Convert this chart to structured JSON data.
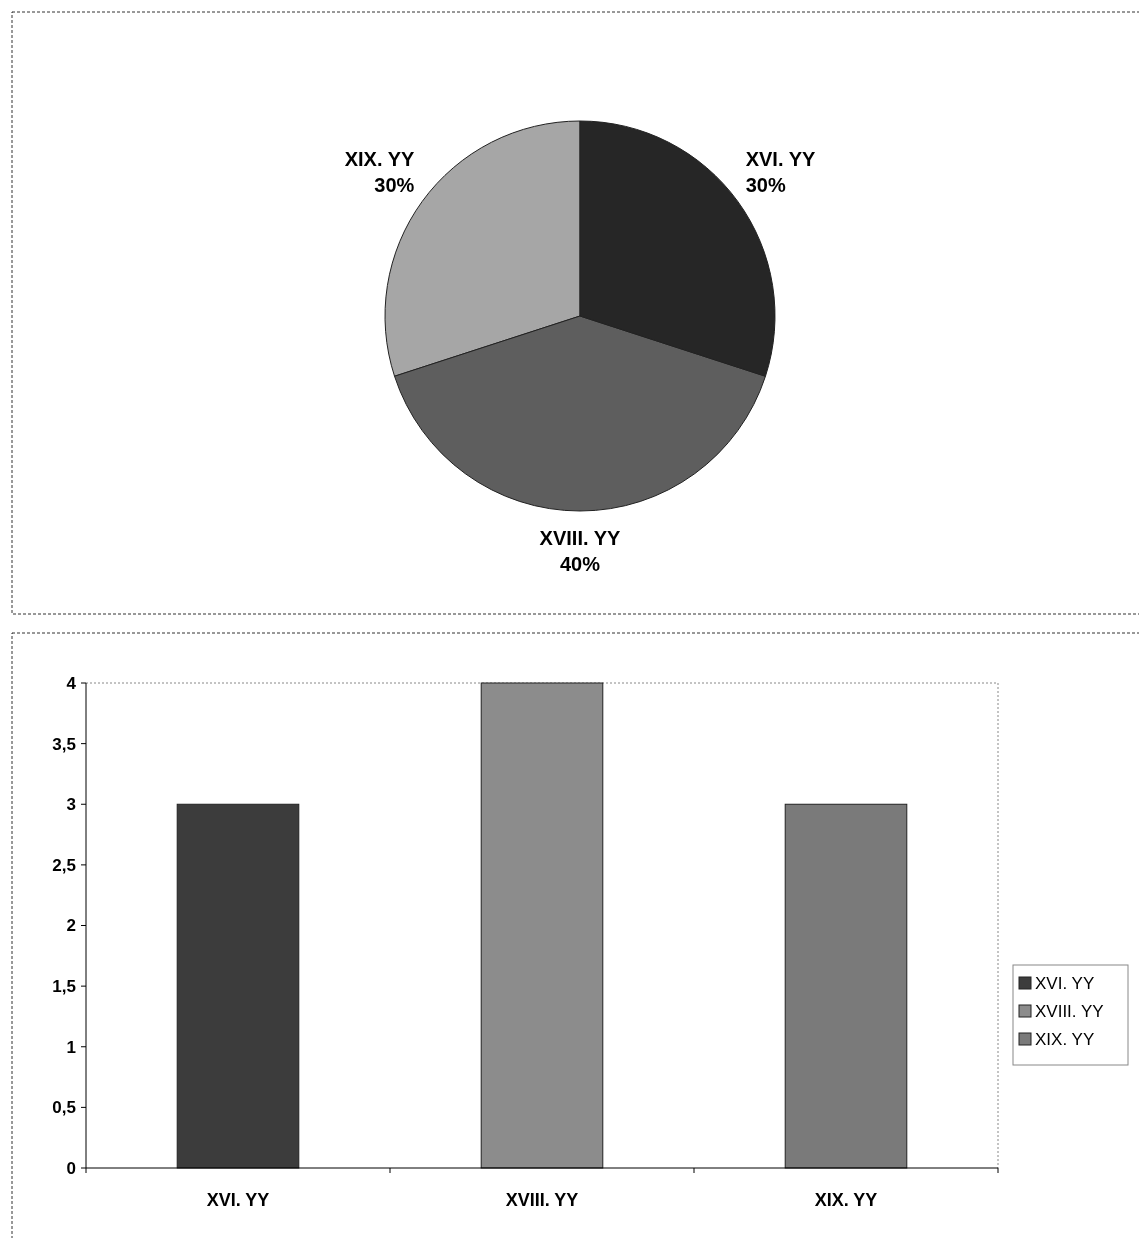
{
  "chart_data": [
    {
      "type": "pie",
      "categories": [
        "XIX. YY",
        "XVIII. YY",
        "XVI. YY"
      ],
      "values": [
        30,
        40,
        30
      ],
      "colors": [
        "#a6a6a6",
        "#5e5e5e",
        "#262626"
      ],
      "value_labels": [
        "30%",
        "40%",
        "30%"
      ],
      "data_labels": true,
      "legend": false
    },
    {
      "type": "bar",
      "categories": [
        "XVI. YY",
        "XVIII. YY",
        "XIX. YY"
      ],
      "values": [
        3,
        4,
        3
      ],
      "colors": [
        "#3c3c3c",
        "#8c8c8c",
        "#7a7a7a"
      ],
      "ylim": [
        0,
        4
      ],
      "yticks": [
        0,
        {
          "value": 0.5,
          "label": "0,5"
        },
        1,
        {
          "value": 1.5,
          "label": "1,5"
        },
        2,
        {
          "value": 2.5,
          "label": "2,5"
        },
        3,
        {
          "value": 3.5,
          "label": "3,5"
        },
        4
      ],
      "grid": false
    }
  ]
}
